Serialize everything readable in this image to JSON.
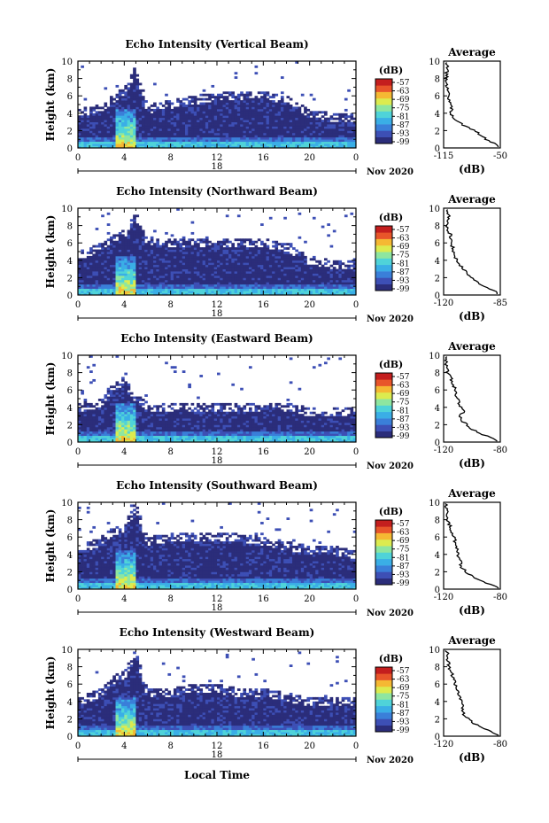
{
  "chart_data": [
    {
      "type": "heatmap",
      "title": "Echo Intensity (Vertical Beam)",
      "ylabel": "Height (km)",
      "ylim": [
        0,
        10
      ],
      "yticks": [
        "0",
        "2",
        "4",
        "6",
        "8",
        "10"
      ],
      "xlim": [
        0,
        24
      ],
      "xticks": [
        "0",
        "4",
        "8",
        "12",
        "16",
        "20",
        "0"
      ],
      "day_label": "18",
      "month_label": "Nov 2020",
      "colorbar": {
        "unit": "(dB)",
        "ticks": [
          "-57",
          "-63",
          "-69",
          "-75",
          "-81",
          "-87",
          "-93",
          "-99"
        ]
      },
      "echo_top_km": [
        [
          0,
          4.0
        ],
        [
          2,
          4.5
        ],
        [
          3,
          5.5
        ],
        [
          4,
          6.5
        ],
        [
          5,
          9.0
        ],
        [
          6,
          4.5
        ],
        [
          8,
          5.0
        ],
        [
          10,
          5.5
        ],
        [
          12,
          6.0
        ],
        [
          14,
          6.0
        ],
        [
          16,
          6.0
        ],
        [
          18,
          5.5
        ],
        [
          20,
          4.0
        ],
        [
          22,
          3.5
        ],
        [
          24,
          3.5
        ]
      ],
      "average": {
        "title": "Average",
        "xlabel": "(dB)",
        "xticks": [
          "-115",
          "-50"
        ],
        "xlim": [
          -115,
          -50
        ],
        "yticks": [
          "0",
          "2",
          "4",
          "6",
          "8",
          "10"
        ],
        "ylim": [
          0,
          10
        ],
        "profile": [
          [
            -52,
            0.2
          ],
          [
            -58,
            0.6
          ],
          [
            -66,
            1.0
          ],
          [
            -72,
            1.5
          ],
          [
            -80,
            2.0
          ],
          [
            -90,
            2.5
          ],
          [
            -98,
            3.0
          ],
          [
            -104,
            3.5
          ],
          [
            -106,
            4.0
          ],
          [
            -107,
            5.0
          ],
          [
            -110,
            6.0
          ],
          [
            -111,
            7.0
          ],
          [
            -112,
            8.0
          ],
          [
            -111,
            9.0
          ],
          [
            -112,
            10.0
          ]
        ]
      }
    },
    {
      "type": "heatmap",
      "title": "Echo Intensity (Northward Beam)",
      "ylabel": "Height (km)",
      "ylim": [
        0,
        10
      ],
      "yticks": [
        "0",
        "2",
        "4",
        "6",
        "8",
        "10"
      ],
      "xlim": [
        0,
        24
      ],
      "xticks": [
        "0",
        "4",
        "8",
        "12",
        "16",
        "20",
        "0"
      ],
      "day_label": "18",
      "month_label": "Nov 2020",
      "colorbar": {
        "unit": "(dB)",
        "ticks": [
          "-57",
          "-63",
          "-69",
          "-75",
          "-81",
          "-87",
          "-93",
          "-99"
        ]
      },
      "echo_top_km": [
        [
          0,
          4.5
        ],
        [
          2,
          5.5
        ],
        [
          3,
          6.5
        ],
        [
          4,
          7.0
        ],
        [
          5,
          9.0
        ],
        [
          6,
          6.0
        ],
        [
          8,
          6.0
        ],
        [
          10,
          6.0
        ],
        [
          12,
          6.0
        ],
        [
          14,
          6.0
        ],
        [
          16,
          6.0
        ],
        [
          18,
          5.5
        ],
        [
          20,
          4.0
        ],
        [
          22,
          3.5
        ],
        [
          24,
          3.5
        ]
      ],
      "average": {
        "title": "Average",
        "xlabel": "(dB)",
        "xticks": [
          "-120",
          "-85"
        ],
        "xlim": [
          -120,
          -85
        ],
        "yticks": [
          "0",
          "2",
          "4",
          "6",
          "8",
          "10"
        ],
        "ylim": [
          0,
          10
        ],
        "profile": [
          [
            -86,
            0.2
          ],
          [
            -90,
            0.6
          ],
          [
            -95,
            1.0
          ],
          [
            -100,
            1.5
          ],
          [
            -103,
            2.0
          ],
          [
            -106,
            2.5
          ],
          [
            -108,
            3.0
          ],
          [
            -110,
            3.5
          ],
          [
            -112,
            4.0
          ],
          [
            -114,
            5.0
          ],
          [
            -115,
            6.0
          ],
          [
            -116,
            7.0
          ],
          [
            -118,
            8.0
          ],
          [
            -117,
            9.0
          ],
          [
            -118,
            10.0
          ]
        ]
      }
    },
    {
      "type": "heatmap",
      "title": "Echo Intensity (Eastward Beam)",
      "ylabel": "Height (km)",
      "ylim": [
        0,
        10
      ],
      "yticks": [
        "0",
        "2",
        "4",
        "6",
        "8",
        "10"
      ],
      "xlim": [
        0,
        24
      ],
      "xticks": [
        "0",
        "4",
        "8",
        "12",
        "16",
        "20",
        "0"
      ],
      "day_label": "18",
      "month_label": "Nov 2020",
      "colorbar": {
        "unit": "(dB)",
        "ticks": [
          "-57",
          "-63",
          "-69",
          "-75",
          "-81",
          "-87",
          "-93",
          "-99"
        ]
      },
      "echo_top_km": [
        [
          0,
          4.0
        ],
        [
          2,
          4.5
        ],
        [
          3,
          6.5
        ],
        [
          4,
          7.0
        ],
        [
          5,
          5.0
        ],
        [
          6,
          4.0
        ],
        [
          8,
          4.0
        ],
        [
          10,
          4.0
        ],
        [
          12,
          4.0
        ],
        [
          14,
          4.0
        ],
        [
          16,
          4.0
        ],
        [
          18,
          4.0
        ],
        [
          20,
          3.5
        ],
        [
          22,
          3.5
        ],
        [
          24,
          3.5
        ]
      ],
      "average": {
        "title": "Average",
        "xlabel": "(dB)",
        "xticks": [
          "-120",
          "-80"
        ],
        "xlim": [
          -120,
          -80
        ],
        "yticks": [
          "0",
          "2",
          "4",
          "6",
          "8",
          "10"
        ],
        "ylim": [
          0,
          10
        ],
        "profile": [
          [
            -82,
            0.2
          ],
          [
            -88,
            0.6
          ],
          [
            -95,
            1.0
          ],
          [
            -100,
            1.5
          ],
          [
            -104,
            2.0
          ],
          [
            -107,
            2.5
          ],
          [
            -108,
            3.0
          ],
          [
            -106,
            3.5
          ],
          [
            -108,
            4.0
          ],
          [
            -110,
            5.0
          ],
          [
            -112,
            6.0
          ],
          [
            -114,
            7.0
          ],
          [
            -117,
            8.0
          ],
          [
            -118,
            9.0
          ],
          [
            -119,
            10.0
          ]
        ]
      }
    },
    {
      "type": "heatmap",
      "title": "Echo Intensity (Southward Beam)",
      "ylabel": "Height (km)",
      "ylim": [
        0,
        10
      ],
      "yticks": [
        "0",
        "2",
        "4",
        "6",
        "8",
        "10"
      ],
      "xlim": [
        0,
        24
      ],
      "xticks": [
        "0",
        "4",
        "8",
        "12",
        "16",
        "20",
        "0"
      ],
      "day_label": "18",
      "month_label": "Nov 2020",
      "colorbar": {
        "unit": "(dB)",
        "ticks": [
          "-57",
          "-63",
          "-69",
          "-75",
          "-81",
          "-87",
          "-93",
          "-99"
        ]
      },
      "echo_top_km": [
        [
          0,
          4.5
        ],
        [
          2,
          5.5
        ],
        [
          3,
          6.5
        ],
        [
          4,
          7.0
        ],
        [
          5,
          9.5
        ],
        [
          6,
          5.5
        ],
        [
          8,
          6.0
        ],
        [
          10,
          6.0
        ],
        [
          12,
          6.0
        ],
        [
          14,
          6.0
        ],
        [
          16,
          5.5
        ],
        [
          18,
          5.0
        ],
        [
          20,
          4.5
        ],
        [
          22,
          4.5
        ],
        [
          24,
          4.0
        ]
      ],
      "average": {
        "title": "Average",
        "xlabel": "(dB)",
        "xticks": [
          "-120",
          "-80"
        ],
        "xlim": [
          -120,
          -80
        ],
        "yticks": [
          "0",
          "2",
          "4",
          "6",
          "8",
          "10"
        ],
        "ylim": [
          0,
          10
        ],
        "profile": [
          [
            -82,
            0.2
          ],
          [
            -88,
            0.6
          ],
          [
            -94,
            1.0
          ],
          [
            -100,
            1.5
          ],
          [
            -104,
            2.0
          ],
          [
            -107,
            2.5
          ],
          [
            -108,
            3.0
          ],
          [
            -109,
            3.5
          ],
          [
            -110,
            4.0
          ],
          [
            -111,
            5.0
          ],
          [
            -113,
            6.0
          ],
          [
            -115,
            7.0
          ],
          [
            -117,
            8.0
          ],
          [
            -118,
            9.0
          ],
          [
            -119,
            10.0
          ]
        ]
      }
    },
    {
      "type": "heatmap",
      "title": "Echo Intensity (Westward Beam)",
      "ylabel": "Height (km)",
      "xlabel": "Local Time",
      "ylim": [
        0,
        10
      ],
      "yticks": [
        "0",
        "2",
        "4",
        "6",
        "8",
        "10"
      ],
      "xlim": [
        0,
        24
      ],
      "xticks": [
        "0",
        "4",
        "8",
        "12",
        "16",
        "20",
        "0"
      ],
      "day_label": "18",
      "month_label": "Nov 2020",
      "colorbar": {
        "unit": "(dB)",
        "ticks": [
          "-57",
          "-63",
          "-69",
          "-75",
          "-81",
          "-87",
          "-93",
          "-99"
        ]
      },
      "echo_top_km": [
        [
          0,
          4.0
        ],
        [
          2,
          5.0
        ],
        [
          3,
          6.5
        ],
        [
          4,
          7.0
        ],
        [
          5,
          9.5
        ],
        [
          6,
          5.0
        ],
        [
          8,
          5.0
        ],
        [
          10,
          5.5
        ],
        [
          12,
          5.5
        ],
        [
          14,
          5.0
        ],
        [
          16,
          5.0
        ],
        [
          18,
          4.5
        ],
        [
          20,
          4.0
        ],
        [
          22,
          4.0
        ],
        [
          24,
          4.0
        ]
      ],
      "average": {
        "title": "Average",
        "xlabel": "(dB)",
        "xticks": [
          "-120",
          "-80"
        ],
        "xlim": [
          -120,
          -80
        ],
        "yticks": [
          "0",
          "2",
          "4",
          "6",
          "8",
          "10"
        ],
        "ylim": [
          0,
          10
        ],
        "profile": [
          [
            -82,
            0.2
          ],
          [
            -88,
            0.6
          ],
          [
            -94,
            1.0
          ],
          [
            -99,
            1.5
          ],
          [
            -103,
            2.0
          ],
          [
            -106,
            2.5
          ],
          [
            -107,
            3.0
          ],
          [
            -106,
            3.5
          ],
          [
            -108,
            4.0
          ],
          [
            -110,
            5.0
          ],
          [
            -112,
            6.0
          ],
          [
            -114,
            7.0
          ],
          [
            -116,
            8.0
          ],
          [
            -117,
            9.0
          ],
          [
            -118,
            10.0
          ]
        ]
      }
    }
  ],
  "colormap": [
    "#2b2d7a",
    "#3d4fb5",
    "#3a7fd9",
    "#3aaee6",
    "#4fd3d9",
    "#8ee6a0",
    "#dceb4f",
    "#f5b833",
    "#e8552a",
    "#c41e1e"
  ]
}
